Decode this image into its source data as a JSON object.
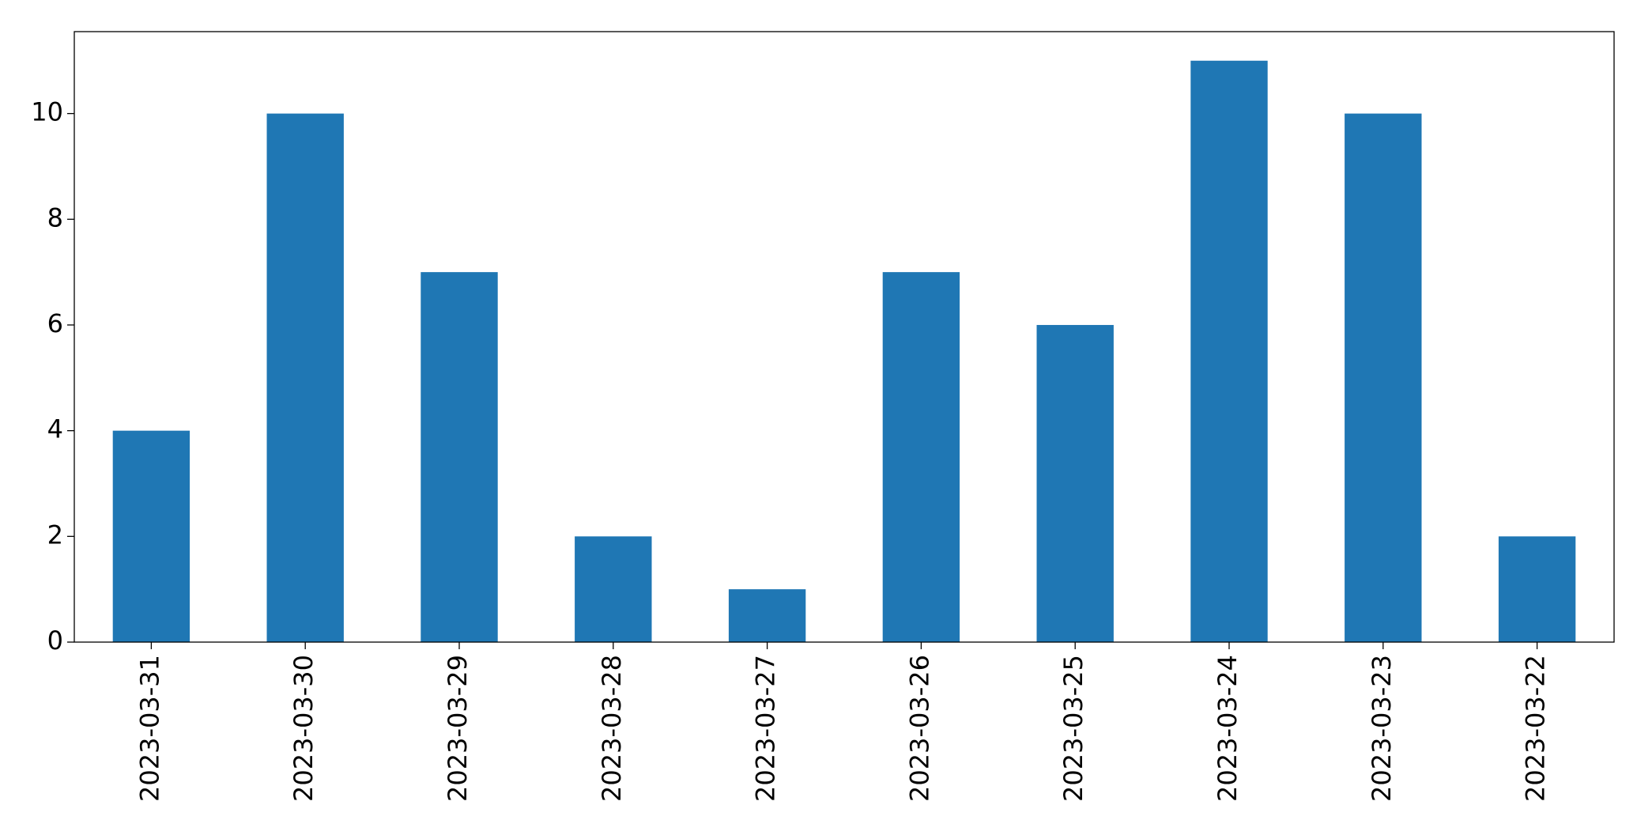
{
  "chart_data": {
    "type": "bar",
    "categories": [
      "2023-03-31",
      "2023-03-30",
      "2023-03-29",
      "2023-03-28",
      "2023-03-27",
      "2023-03-26",
      "2023-03-25",
      "2023-03-24",
      "2023-03-23",
      "2023-03-22"
    ],
    "values": [
      4,
      10,
      7,
      2,
      1,
      7,
      6,
      11,
      10,
      2
    ],
    "color": "#1f77b4",
    "ylim": [
      0,
      11.55
    ],
    "yticks": [
      0,
      2,
      4,
      6,
      8,
      10
    ],
    "grid": false
  }
}
